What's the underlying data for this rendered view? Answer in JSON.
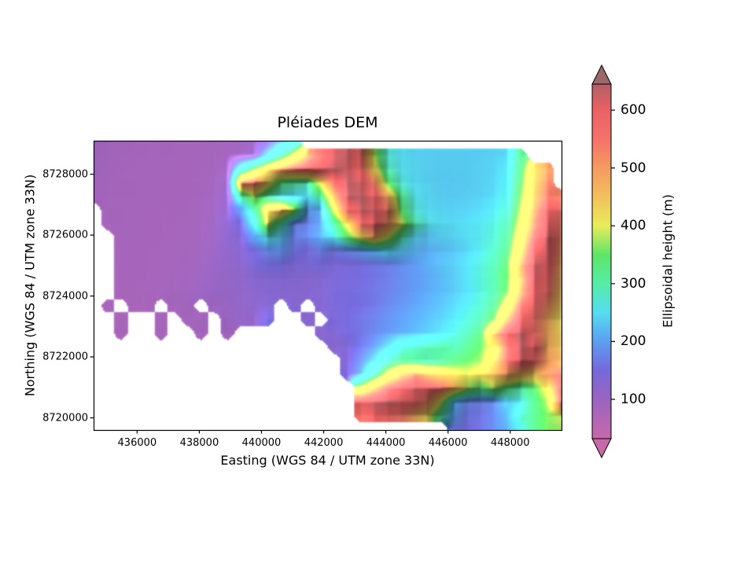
{
  "figure": {
    "title": "Pléiades DEM",
    "background": "#ffffff"
  },
  "axes": {
    "xlabel": "Easting (WGS 84 / UTM zone 33N)",
    "ylabel": "Northing (WGS 84 / UTM zone 33N)",
    "xlim": [
      434600,
      449650
    ],
    "ylim": [
      8719600,
      8729100
    ],
    "xticks": [
      436000,
      438000,
      440000,
      442000,
      444000,
      446000,
      448000
    ],
    "yticks": [
      8728000,
      8726000,
      8724000,
      8722000,
      8720000
    ],
    "frame_color": "#000000",
    "tick_color": "#000000"
  },
  "colorbar": {
    "label": "Ellipsoidal height (m)",
    "ticks": [
      600,
      500,
      400,
      300,
      200,
      100
    ],
    "vmin": 32,
    "vmax": 645,
    "extend": "both",
    "under_color": "#c969a9",
    "over_color": "#9c686c",
    "stops": [
      [
        32,
        "#c868aa"
      ],
      [
        100,
        "#9a64c0"
      ],
      [
        150,
        "#7569db"
      ],
      [
        200,
        "#5c9ef0"
      ],
      [
        250,
        "#55ddf0"
      ],
      [
        300,
        "#57eca6"
      ],
      [
        350,
        "#5ee566"
      ],
      [
        400,
        "#e9ec5b"
      ],
      [
        450,
        "#f2c05c"
      ],
      [
        500,
        "#f59a60"
      ],
      [
        550,
        "#f4726b"
      ],
      [
        600,
        "#ea6164"
      ],
      [
        645,
        "#b06066"
      ]
    ]
  },
  "chart_data": {
    "type": "heatmap",
    "title": "Pléiades DEM",
    "xlabel": "Easting (WGS 84 / UTM zone 33N)",
    "ylabel": "Northing (WGS 84 / UTM zone 33N)",
    "value_label": "Ellipsoidal height (m)",
    "x_range": [
      434600,
      449650
    ],
    "y_range": [
      8719600,
      8729100
    ],
    "value_range": [
      32,
      645
    ],
    "grid_order": "north-to-south rows, west-to-east columns; null = nodata (white)",
    "hillshade_light": "northwest",
    "grid": [
      [
        95,
        90,
        88,
        86,
        85,
        85,
        84,
        84,
        85,
        86,
        88,
        92,
        96,
        130,
        200,
        240,
        null,
        null,
        null,
        null,
        null,
        null,
        null,
        null,
        null,
        null,
        null,
        null,
        null,
        null,
        null,
        null,
        null,
        null,
        null,
        null
      ],
      [
        92,
        88,
        86,
        85,
        84,
        84,
        83,
        84,
        85,
        86,
        89,
        95,
        110,
        220,
        300,
        400,
        500,
        570,
        620,
        630,
        560,
        380,
        270,
        250,
        240,
        238,
        236,
        235,
        235,
        236,
        238,
        242,
        320,
        null,
        null,
        null
      ],
      [
        90,
        87,
        85,
        84,
        84,
        83,
        83,
        84,
        85,
        87,
        95,
        260,
        360,
        440,
        510,
        560,
        590,
        615,
        635,
        625,
        570,
        430,
        290,
        255,
        243,
        238,
        236,
        235,
        235,
        237,
        241,
        252,
        330,
        440,
        500,
        null
      ],
      [
        88,
        86,
        85,
        84,
        83,
        83,
        83,
        84,
        86,
        90,
        105,
        520,
        560,
        430,
        330,
        300,
        290,
        420,
        560,
        635,
        620,
        520,
        350,
        270,
        245,
        237,
        234,
        233,
        234,
        237,
        242,
        258,
        345,
        455,
        530,
        null
      ],
      [
        87,
        85,
        84,
        83,
        83,
        82,
        83,
        84,
        86,
        92,
        110,
        300,
        380,
        300,
        260,
        240,
        250,
        310,
        480,
        630,
        640,
        600,
        480,
        320,
        260,
        243,
        236,
        234,
        235,
        238,
        245,
        265,
        360,
        470,
        545,
        520
      ],
      [
        null,
        85,
        84,
        83,
        82,
        82,
        83,
        84,
        87,
        95,
        115,
        200,
        300,
        430,
        480,
        380,
        200,
        210,
        400,
        560,
        630,
        620,
        540,
        350,
        270,
        248,
        240,
        238,
        240,
        245,
        255,
        280,
        380,
        500,
        600,
        560
      ],
      [
        null,
        84,
        83,
        83,
        82,
        82,
        83,
        85,
        88,
        98,
        120,
        150,
        260,
        400,
        300,
        180,
        170,
        200,
        300,
        420,
        560,
        600,
        520,
        400,
        300,
        260,
        248,
        245,
        248,
        255,
        268,
        300,
        400,
        520,
        620,
        540
      ],
      [
        null,
        null,
        83,
        82,
        82,
        82,
        84,
        86,
        90,
        100,
        118,
        130,
        200,
        260,
        230,
        170,
        180,
        210,
        260,
        340,
        420,
        480,
        400,
        300,
        240,
        225,
        235,
        240,
        248,
        258,
        275,
        315,
        430,
        560,
        640,
        520
      ],
      [
        null,
        null,
        83,
        82,
        82,
        83,
        85,
        87,
        92,
        102,
        115,
        125,
        150,
        180,
        190,
        160,
        150,
        170,
        160,
        175,
        195,
        220,
        240,
        230,
        215,
        210,
        218,
        228,
        240,
        258,
        285,
        330,
        460,
        600,
        620,
        500
      ],
      [
        null,
        null,
        82,
        82,
        82,
        84,
        86,
        88,
        94,
        104,
        112,
        120,
        140,
        150,
        150,
        140,
        140,
        145,
        140,
        145,
        150,
        160,
        170,
        180,
        195,
        210,
        225,
        235,
        250,
        270,
        295,
        350,
        500,
        630,
        600,
        480
      ],
      [
        null,
        null,
        82,
        81,
        82,
        85,
        87,
        90,
        96,
        105,
        110,
        115,
        125,
        130,
        132,
        130,
        128,
        132,
        140,
        145,
        150,
        158,
        168,
        180,
        192,
        205,
        218,
        232,
        250,
        272,
        300,
        350,
        480,
        620,
        580,
        470
      ],
      [
        null,
        null,
        81,
        81,
        83,
        86,
        88,
        92,
        98,
        104,
        108,
        112,
        122,
        126,
        128,
        128,
        126,
        130,
        142,
        148,
        155,
        162,
        172,
        182,
        192,
        205,
        218,
        230,
        248,
        268,
        300,
        360,
        500,
        600,
        560,
        450
      ],
      [
        null,
        80,
        null,
        80,
        82,
        null,
        85,
        88,
        null,
        98,
        104,
        110,
        120,
        130,
        null,
        130,
        null,
        130,
        140,
        148,
        152,
        162,
        175,
        188,
        200,
        212,
        225,
        240,
        258,
        280,
        320,
        420,
        560,
        580,
        520,
        430
      ],
      [
        null,
        null,
        80,
        null,
        null,
        82,
        null,
        85,
        88,
        null,
        100,
        108,
        115,
        150,
        null,
        null,
        125,
        null,
        140,
        150,
        160,
        172,
        185,
        198,
        210,
        222,
        235,
        250,
        272,
        300,
        360,
        500,
        600,
        560,
        480,
        410
      ],
      [
        null,
        null,
        78,
        null,
        null,
        80,
        null,
        null,
        84,
        null,
        90,
        null,
        null,
        null,
        null,
        null,
        null,
        125,
        132,
        150,
        160,
        175,
        190,
        205,
        218,
        232,
        248,
        268,
        295,
        335,
        480,
        600,
        640,
        560,
        480,
        430
      ],
      [
        null,
        null,
        null,
        null,
        null,
        null,
        null,
        null,
        null,
        null,
        null,
        null,
        null,
        null,
        null,
        null,
        null,
        null,
        125,
        135,
        160,
        190,
        230,
        270,
        285,
        295,
        300,
        295,
        320,
        350,
        420,
        560,
        640,
        600,
        480,
        440
      ],
      [
        null,
        null,
        null,
        null,
        null,
        null,
        null,
        null,
        null,
        null,
        null,
        null,
        null,
        null,
        null,
        null,
        null,
        null,
        null,
        135,
        180,
        230,
        290,
        320,
        310,
        300,
        310,
        330,
        350,
        370,
        450,
        560,
        620,
        560,
        500,
        470
      ],
      [
        null,
        null,
        null,
        null,
        null,
        null,
        null,
        null,
        null,
        null,
        null,
        null,
        null,
        null,
        null,
        null,
        null,
        null,
        null,
        140,
        200,
        300,
        400,
        480,
        520,
        480,
        450,
        420,
        400,
        420,
        460,
        500,
        460,
        440,
        500,
        560
      ],
      [
        null,
        null,
        null,
        null,
        null,
        null,
        null,
        null,
        null,
        null,
        null,
        null,
        null,
        null,
        null,
        null,
        null,
        null,
        null,
        null,
        400,
        480,
        560,
        600,
        620,
        600,
        560,
        480,
        380,
        340,
        380,
        330,
        300,
        340,
        420,
        580
      ],
      [
        null,
        null,
        null,
        null,
        null,
        null,
        null,
        null,
        null,
        null,
        null,
        null,
        null,
        null,
        null,
        null,
        null,
        null,
        null,
        null,
        600,
        630,
        640,
        620,
        580,
        520,
        400,
        220,
        180,
        170,
        180,
        240,
        260,
        320,
        380,
        560
      ],
      [
        null,
        null,
        null,
        null,
        null,
        null,
        null,
        null,
        null,
        null,
        null,
        null,
        null,
        null,
        null,
        null,
        null,
        null,
        null,
        null,
        560,
        600,
        580,
        540,
        480,
        420,
        300,
        200,
        160,
        160,
        180,
        220,
        280,
        320,
        360,
        390
      ],
      [
        null,
        null,
        null,
        null,
        null,
        null,
        null,
        null,
        null,
        null,
        null,
        null,
        null,
        null,
        null,
        null,
        null,
        null,
        null,
        null,
        null,
        null,
        null,
        null,
        null,
        null,
        null,
        170,
        150,
        160,
        180,
        210,
        260,
        320,
        360,
        370
      ]
    ]
  }
}
